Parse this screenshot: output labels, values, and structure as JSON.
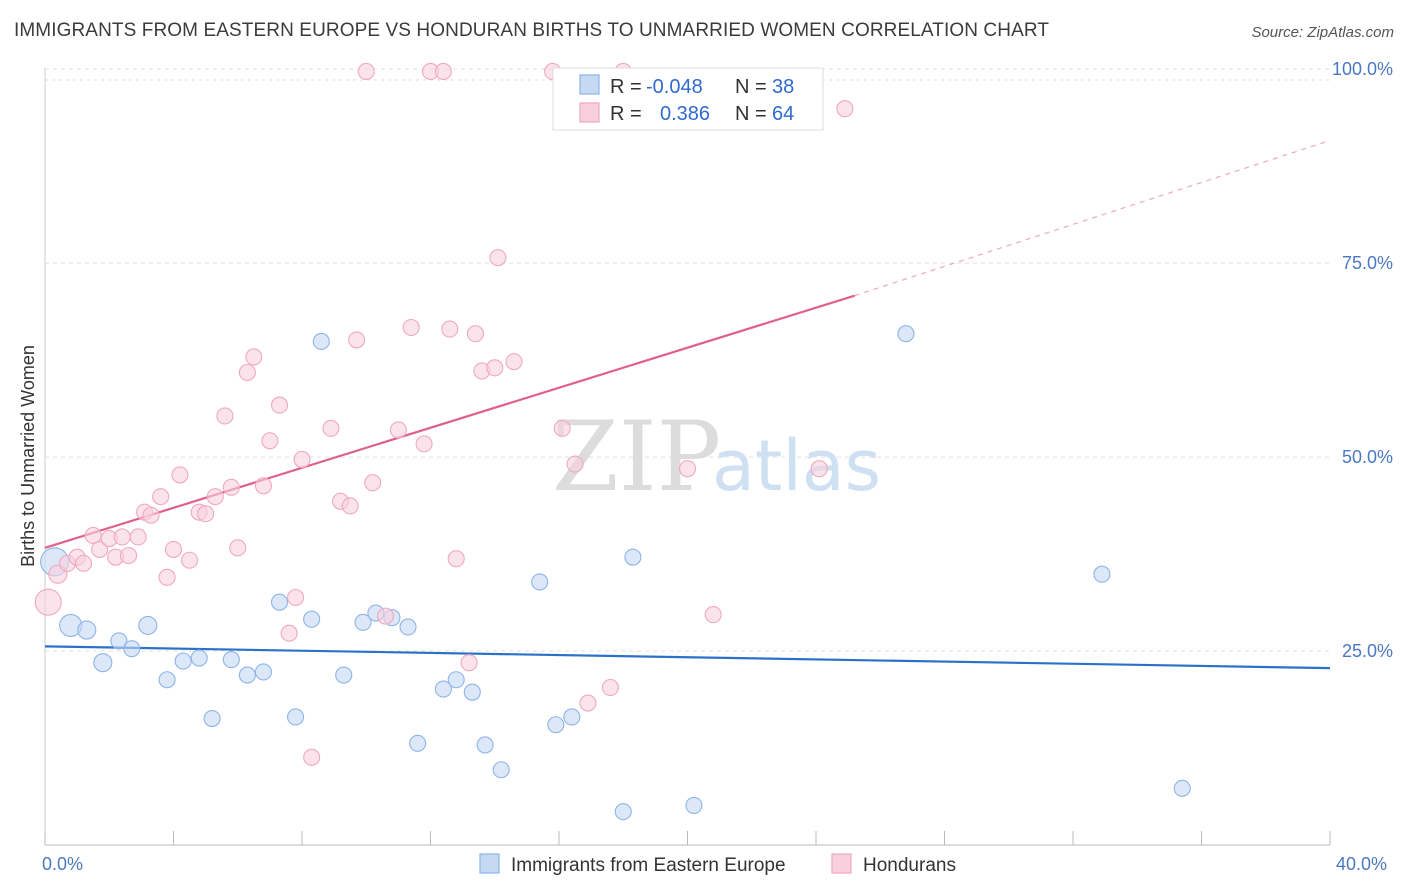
{
  "chart_data": {
    "type": "scatter",
    "title": "IMMIGRANTS FROM EASTERN EUROPE VS HONDURAN BIRTHS TO UNMARRIED WOMEN CORRELATION CHART",
    "source": "Source: ZipAtlas.com",
    "xlabel": "",
    "ylabel": "Births to Unmarried Women",
    "xlim": [
      0,
      40
    ],
    "ylim": [
      0,
      100
    ],
    "x_tick_labels": [
      "0.0%",
      "40.0%"
    ],
    "y_ticks": [
      {
        "value": 25,
        "label": "25.0%"
      },
      {
        "value": 50,
        "label": "50.0%"
      },
      {
        "value": 75,
        "label": "75.0%"
      },
      {
        "value": 100,
        "label": "100.0%"
      }
    ],
    "grid": true,
    "legend_position": "bottom",
    "watermark": [
      "ZIP",
      "atlas"
    ],
    "stats": {
      "r_label": "R =",
      "n_label": "N =",
      "rows": [
        {
          "series": "Immigrants from Eastern Europe",
          "r": "-0.048",
          "n": "38"
        },
        {
          "series": "Hondurans",
          "r": "0.386",
          "n": "64"
        }
      ]
    },
    "series": [
      {
        "name": "Immigrants from Eastern Europe",
        "color": "#8db4e8",
        "fill": "#c5d9f3",
        "line_color": "#2a72c9",
        "trend": {
          "x0": 0,
          "y0": 25.6,
          "x1": 40,
          "y1": 22.8
        },
        "points": [
          [
            0.3,
            36.5,
            14
          ],
          [
            0.8,
            28.3,
            11
          ],
          [
            1.3,
            27.7,
            9
          ],
          [
            1.8,
            23.5,
            9
          ],
          [
            2.3,
            26.3,
            8
          ],
          [
            2.7,
            25.3,
            8
          ],
          [
            3.2,
            28.3,
            9
          ],
          [
            3.8,
            21.3,
            8
          ],
          [
            4.3,
            23.7,
            8
          ],
          [
            4.8,
            24.1,
            8
          ],
          [
            5.2,
            16.3,
            8
          ],
          [
            5.8,
            23.9,
            8
          ],
          [
            6.3,
            21.9,
            8
          ],
          [
            6.8,
            22.3,
            8
          ],
          [
            7.3,
            31.3,
            8
          ],
          [
            7.8,
            16.5,
            8
          ],
          [
            8.3,
            29.1,
            8
          ],
          [
            8.6,
            64.9,
            8
          ],
          [
            9.3,
            21.9,
            8
          ],
          [
            9.9,
            28.7,
            8
          ],
          [
            10.3,
            29.9,
            8
          ],
          [
            10.8,
            29.3,
            8
          ],
          [
            11.3,
            28.1,
            8
          ],
          [
            11.6,
            13.1,
            8
          ],
          [
            12.4,
            20.1,
            8
          ],
          [
            12.8,
            21.3,
            8
          ],
          [
            13.3,
            19.7,
            8
          ],
          [
            13.7,
            12.9,
            8
          ],
          [
            14.2,
            9.7,
            8
          ],
          [
            15.4,
            33.9,
            8
          ],
          [
            15.9,
            15.5,
            8
          ],
          [
            16.4,
            16.5,
            8
          ],
          [
            18.0,
            4.3,
            8
          ],
          [
            18.3,
            37.1,
            8
          ],
          [
            20.2,
            5.1,
            8
          ],
          [
            26.8,
            65.9,
            8
          ],
          [
            32.9,
            34.9,
            8
          ],
          [
            35.4,
            7.3,
            8
          ]
        ]
      },
      {
        "name": "Hondurans",
        "color": "#f0a8c0",
        "fill": "#f8d0dd",
        "line_color": "#e0608c",
        "trend": {
          "x0": 0,
          "y0": 38.3,
          "x1": 25.2,
          "y1": 70.8
        },
        "trend_ext": {
          "x0": 25.2,
          "y0": 70.8,
          "x1": 40,
          "y1": 90.8
        },
        "points": [
          [
            0.1,
            31.3,
            13
          ],
          [
            0.4,
            34.9,
            9
          ],
          [
            0.7,
            36.3,
            8
          ],
          [
            1.0,
            37.1,
            8
          ],
          [
            1.2,
            36.3,
            8
          ],
          [
            1.5,
            39.9,
            8
          ],
          [
            1.7,
            38.1,
            8
          ],
          [
            2.0,
            39.5,
            8
          ],
          [
            2.2,
            37.1,
            8
          ],
          [
            2.4,
            39.7,
            8
          ],
          [
            2.6,
            37.3,
            8
          ],
          [
            2.9,
            39.7,
            8
          ],
          [
            3.1,
            42.9,
            8
          ],
          [
            3.3,
            42.5,
            8
          ],
          [
            3.6,
            44.9,
            8
          ],
          [
            3.8,
            34.5,
            8
          ],
          [
            4.0,
            38.1,
            8
          ],
          [
            4.2,
            47.7,
            8
          ],
          [
            4.5,
            36.7,
            8
          ],
          [
            4.8,
            42.9,
            8
          ],
          [
            5.0,
            42.7,
            8
          ],
          [
            5.3,
            44.9,
            8
          ],
          [
            5.6,
            55.3,
            8
          ],
          [
            5.8,
            46.1,
            8
          ],
          [
            6.0,
            38.3,
            8
          ],
          [
            6.3,
            60.9,
            8
          ],
          [
            6.5,
            62.9,
            8
          ],
          [
            6.8,
            46.3,
            8
          ],
          [
            7.0,
            52.1,
            8
          ],
          [
            7.3,
            56.7,
            8
          ],
          [
            7.6,
            27.3,
            8
          ],
          [
            7.8,
            31.9,
            8
          ],
          [
            8.0,
            49.7,
            8
          ],
          [
            8.3,
            11.3,
            8
          ],
          [
            8.9,
            53.7,
            8
          ],
          [
            9.2,
            44.3,
            8
          ],
          [
            9.5,
            43.7,
            8
          ],
          [
            9.7,
            65.1,
            8
          ],
          [
            10.0,
            99.7,
            8
          ],
          [
            10.2,
            46.7,
            8
          ],
          [
            10.6,
            29.5,
            8
          ],
          [
            11.0,
            53.5,
            8
          ],
          [
            11.4,
            66.7,
            8
          ],
          [
            11.8,
            51.7,
            8
          ],
          [
            12.0,
            99.7,
            8
          ],
          [
            12.4,
            99.7,
            8
          ],
          [
            12.6,
            66.5,
            8
          ],
          [
            12.8,
            36.9,
            8
          ],
          [
            13.2,
            23.5,
            8
          ],
          [
            13.4,
            65.9,
            8
          ],
          [
            13.6,
            61.1,
            8
          ],
          [
            14.0,
            61.5,
            8
          ],
          [
            14.1,
            75.7,
            8
          ],
          [
            14.6,
            62.3,
            8
          ],
          [
            15.8,
            99.7,
            8
          ],
          [
            16.1,
            53.7,
            8
          ],
          [
            16.5,
            49.1,
            8
          ],
          [
            16.9,
            18.3,
            8
          ],
          [
            17.6,
            20.3,
            8
          ],
          [
            18.0,
            99.7,
            8
          ],
          [
            20.0,
            48.5,
            8
          ],
          [
            20.8,
            29.7,
            8
          ],
          [
            24.1,
            48.5,
            8
          ],
          [
            24.9,
            94.9,
            8
          ]
        ]
      }
    ]
  }
}
